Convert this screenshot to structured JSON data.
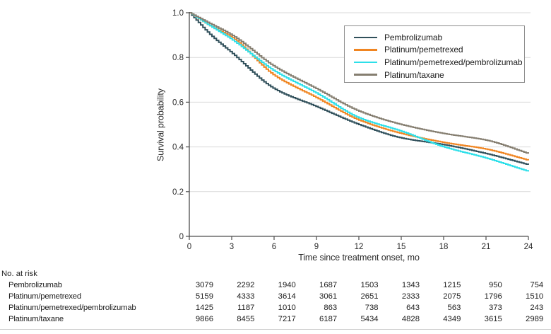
{
  "chart_data": {
    "type": "line",
    "subtype": "kaplan-meier-survival",
    "title": "",
    "xlabel": "Time since treatment onset, mo",
    "ylabel": "Survival probability",
    "xlim": [
      0,
      24
    ],
    "ylim": [
      0,
      1
    ],
    "x_ticks": [
      0,
      3,
      6,
      9,
      12,
      15,
      18,
      21,
      24
    ],
    "y_ticks": [
      0,
      0.2,
      0.4,
      0.6,
      0.8,
      1.0
    ],
    "y_tick_labels": [
      "0",
      "0.2",
      "0.4",
      "0.6",
      "0.8",
      "1.0"
    ],
    "grid": "horizontal",
    "legend_position": "upper right",
    "x": [
      0,
      1.5,
      3,
      6,
      9,
      12,
      15,
      18,
      21,
      24
    ],
    "series": [
      {
        "name": "Pembrolizumab",
        "color": "#31505b",
        "values": [
          1.0,
          0.9,
          0.82,
          0.66,
          0.58,
          0.5,
          0.44,
          0.41,
          0.37,
          0.32
        ]
      },
      {
        "name": "Platinum/pemetrexed",
        "color": "#f08521",
        "values": [
          1.0,
          0.94,
          0.89,
          0.72,
          0.62,
          0.52,
          0.46,
          0.42,
          0.39,
          0.34
        ]
      },
      {
        "name": "Platinum/pemetrexed/pembrolizumab",
        "color": "#2ddfe9",
        "values": [
          1.0,
          0.94,
          0.88,
          0.74,
          0.64,
          0.53,
          0.47,
          0.4,
          0.35,
          0.29
        ]
      },
      {
        "name": "Platinum/taxane",
        "color": "#857e70",
        "values": [
          1.0,
          0.95,
          0.9,
          0.76,
          0.66,
          0.56,
          0.5,
          0.46,
          0.43,
          0.37
        ]
      }
    ]
  },
  "risk_table": {
    "title": "No. at risk",
    "time_points": [
      0,
      3,
      6,
      9,
      12,
      15,
      18,
      21,
      24
    ],
    "rows": [
      {
        "label": "Pembrolizumab",
        "counts": [
          "3079",
          "2292",
          "1940",
          "1687",
          "1503",
          "1343",
          "1215",
          "950",
          "754"
        ]
      },
      {
        "label": "Platinum/pemetrexed",
        "counts": [
          "5159",
          "4333",
          "3614",
          "3061",
          "2651",
          "2333",
          "2075",
          "1796",
          "1510"
        ]
      },
      {
        "label": "Platinum/pemetrexed/pembrolizumab",
        "counts": [
          "1425",
          "1187",
          "1010",
          "863",
          "738",
          "643",
          "563",
          "373",
          "243"
        ]
      },
      {
        "label": "Platinum/taxane",
        "counts": [
          "9866",
          "8455",
          "7217",
          "6187",
          "5434",
          "4828",
          "4349",
          "3615",
          "2989"
        ]
      }
    ]
  },
  "style": {
    "axis_color": "#4d4d4d",
    "grid_color": "#d9d9d9",
    "tick_text_color": "#2b2b2b"
  }
}
